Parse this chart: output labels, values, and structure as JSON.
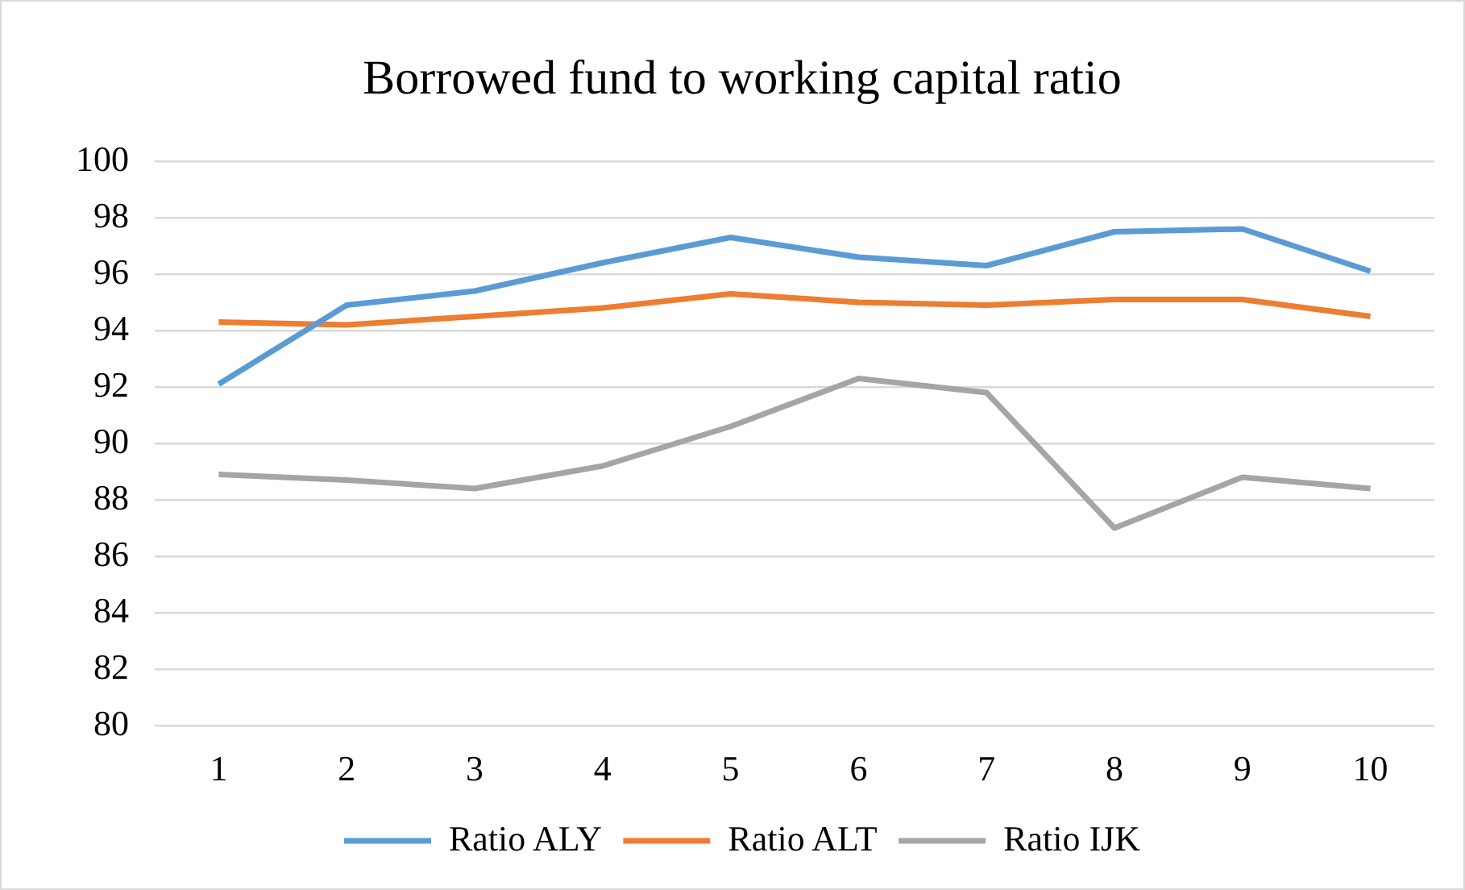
{
  "chart_data": {
    "type": "line",
    "title": "Borrowed fund to working capital ratio",
    "categories": [
      "1",
      "2",
      "3",
      "4",
      "5",
      "6",
      "7",
      "8",
      "9",
      "10"
    ],
    "series": [
      {
        "name": "Ratio ALY",
        "color": "#5b9bd5",
        "values": [
          92.1,
          94.9,
          95.4,
          96.4,
          97.3,
          96.6,
          96.3,
          97.5,
          97.6,
          96.1
        ]
      },
      {
        "name": "Ratio ALT",
        "color": "#ed7d31",
        "values": [
          94.3,
          94.2,
          94.5,
          94.8,
          95.3,
          95.0,
          94.9,
          95.1,
          95.1,
          94.5
        ]
      },
      {
        "name": "Ratio IJK",
        "color": "#a5a5a5",
        "values": [
          88.9,
          88.7,
          88.4,
          89.2,
          90.6,
          92.3,
          91.8,
          87.0,
          88.8,
          88.4
        ]
      }
    ],
    "ylim": [
      80,
      100
    ],
    "yticks": [
      80,
      82,
      84,
      86,
      88,
      90,
      92,
      94,
      96,
      98,
      100
    ],
    "grid": "y",
    "legend": "bottom",
    "marker": "none"
  }
}
